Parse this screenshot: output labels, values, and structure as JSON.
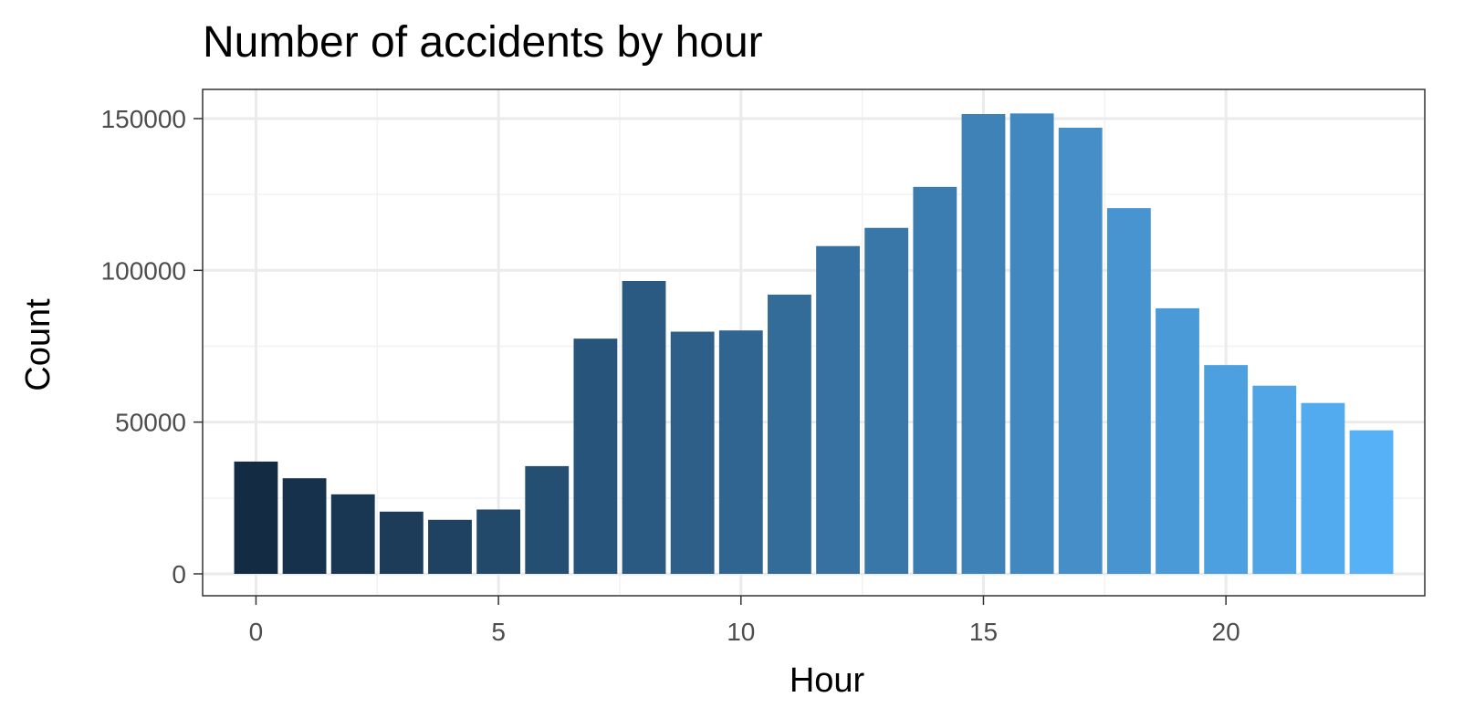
{
  "chart_data": {
    "type": "bar",
    "title": "Number of accidents by hour",
    "xlabel": "Hour",
    "ylabel": "Count",
    "x": [
      0,
      1,
      2,
      3,
      4,
      5,
      6,
      7,
      8,
      9,
      10,
      11,
      12,
      13,
      14,
      15,
      16,
      17,
      18,
      19,
      20,
      21,
      22,
      23
    ],
    "values": [
      37000,
      31500,
      26200,
      20500,
      17800,
      21200,
      35500,
      77500,
      96500,
      79800,
      80200,
      92000,
      108000,
      114000,
      127500,
      151500,
      151700,
      147000,
      120500,
      87500,
      68800,
      62000,
      56300,
      47300
    ],
    "xlim": [
      -0.5,
      23.5
    ],
    "ylim": [
      0,
      158000
    ],
    "xticks": [
      0,
      5,
      10,
      15,
      20
    ],
    "yticks": [
      0,
      50000,
      100000,
      150000
    ],
    "xtick_labels": [
      "0",
      "5",
      "10",
      "15",
      "20"
    ],
    "ytick_labels": [
      "0",
      "50000",
      "100000",
      "150000"
    ],
    "grid": true,
    "legend": "none",
    "fill_gradient": {
      "low": "#132b43",
      "high": "#56b1f7",
      "mapped_to": "x"
    },
    "colors": {
      "panel_border": "#333333",
      "grid_major": "#ebebeb",
      "grid_minor": "#f2f2f2",
      "tick_text": "#4d4d4d"
    }
  }
}
